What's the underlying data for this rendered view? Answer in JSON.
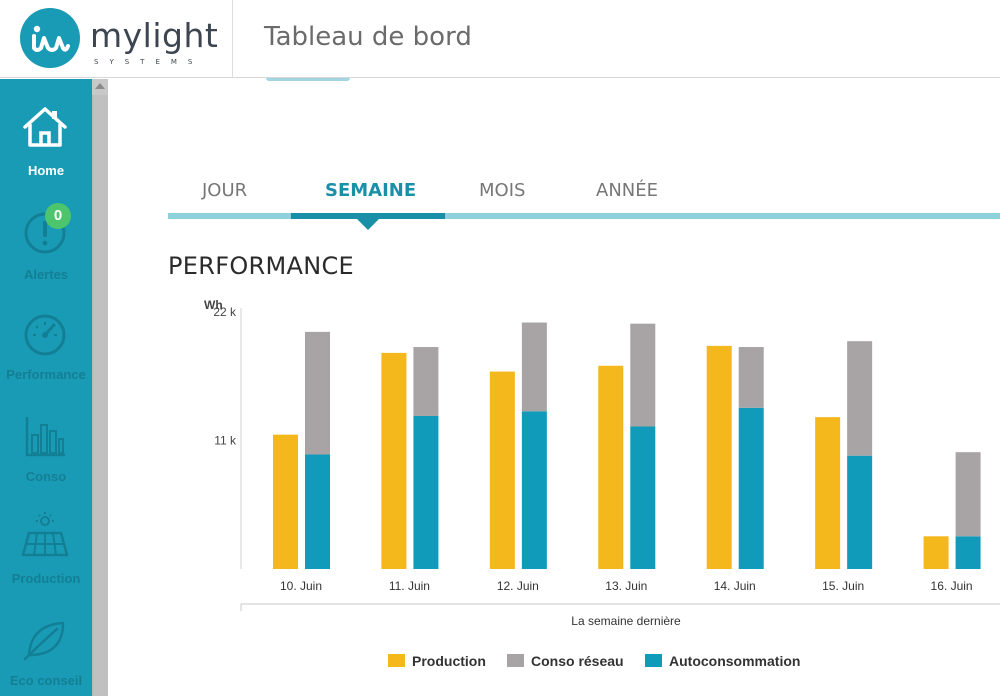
{
  "app": {
    "logo_name": "mylight",
    "logo_sub": "SYSTEMS",
    "page_title": "Tableau de bord"
  },
  "sidebar": {
    "items": [
      {
        "label": "Home",
        "icon": "home-icon",
        "active": true
      },
      {
        "label": "Alertes",
        "icon": "alert-icon",
        "badge": "0"
      },
      {
        "label": "Performance",
        "icon": "gauge-icon"
      },
      {
        "label": "Conso",
        "icon": "bar-chart-icon"
      },
      {
        "label": "Production",
        "icon": "solar-panel-icon"
      },
      {
        "label": "Eco conseil",
        "icon": "leaf-icon"
      }
    ]
  },
  "tabs": [
    {
      "label": "JOUR"
    },
    {
      "label": "SEMAINE",
      "active": true
    },
    {
      "label": "MOIS"
    },
    {
      "label": "ANNÉE"
    }
  ],
  "section_title": "PERFORMANCE",
  "colors": {
    "brand": "#1a9bb5",
    "production": "#f4b71c",
    "conso_reseau": "#a8a3a4",
    "autoconsommation": "#109bbb"
  },
  "chart_data": {
    "type": "bar",
    "stacked_second_column": true,
    "ylabel": "Wh",
    "ylim": [
      0,
      22000
    ],
    "yticks": [
      {
        "value": 11000,
        "label": "11 k"
      },
      {
        "value": 22000,
        "label": "22 k"
      }
    ],
    "xlabel": "La semaine dernière",
    "categories": [
      "10. Juin",
      "11. Juin",
      "12. Juin",
      "13. Juin",
      "14. Juin",
      "15. Juin",
      "16. Juin"
    ],
    "series": [
      {
        "name": "Production",
        "values": [
          11500,
          18500,
          16900,
          17400,
          19100,
          13000,
          2800
        ]
      },
      {
        "name": "Conso réseau",
        "values": [
          10500,
          5900,
          7600,
          8800,
          5200,
          9800,
          7200
        ]
      },
      {
        "name": "Autoconsommation",
        "values": [
          9800,
          13100,
          13500,
          12200,
          13800,
          9700,
          2800
        ]
      }
    ],
    "legend_position": "bottom"
  }
}
